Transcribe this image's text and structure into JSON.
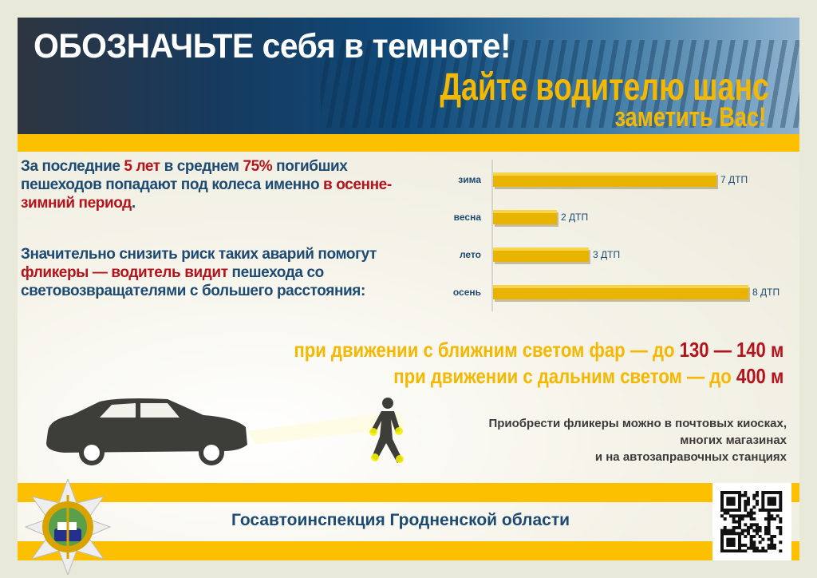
{
  "header": {
    "title": "ОБОЗНАЧЬТЕ себя в темноте!",
    "slogan_line1": "Дайте водителю шанс",
    "slogan_line2": "заметить Вас!"
  },
  "info": {
    "p1": [
      {
        "t": "За последние "
      },
      {
        "t": "5 лет",
        "hl": true
      },
      {
        "t": " в среднем "
      },
      {
        "t": "75%",
        "hl": true
      },
      {
        "t": " погибших пешеходов попадают под колеса именно "
      },
      {
        "t": "в осенне-зимний период",
        "hl": true
      },
      {
        "t": "."
      }
    ],
    "p2": [
      {
        "t": "Значительно снизить риск таких аварий помогут "
      },
      {
        "t": "фликеры — водитель видит",
        "hl": true
      },
      {
        "t": " пешехода со световозвращателями с большего расстояния:"
      }
    ]
  },
  "distances": {
    "low_beam_text": "при движении с ближним светом фар — до ",
    "low_beam_value": "130 — 140 м",
    "high_beam_text": "при движении  с дальним светом — до ",
    "high_beam_value": "400 м"
  },
  "purchase": {
    "line1": "Приобрести фликеры можно в почтовых киосках,",
    "line2": "многих магазинах",
    "line3": "и на автозаправочных станциях"
  },
  "footer": {
    "organization": "Госавтоинспекция Гродненской области"
  },
  "colors": {
    "blue": "#1d4a72",
    "yellow": "#fcc000",
    "red": "#b5121b",
    "bar": "#e8b400"
  },
  "chart_data": {
    "type": "bar",
    "orientation": "horizontal",
    "categories": [
      "зима",
      "весна",
      "лето",
      "осень"
    ],
    "values": [
      7,
      2,
      3,
      8
    ],
    "data_labels": [
      "7 ДТП",
      "2 ДТП",
      "3 ДТП",
      "8 ДТП"
    ],
    "grid": false
  }
}
